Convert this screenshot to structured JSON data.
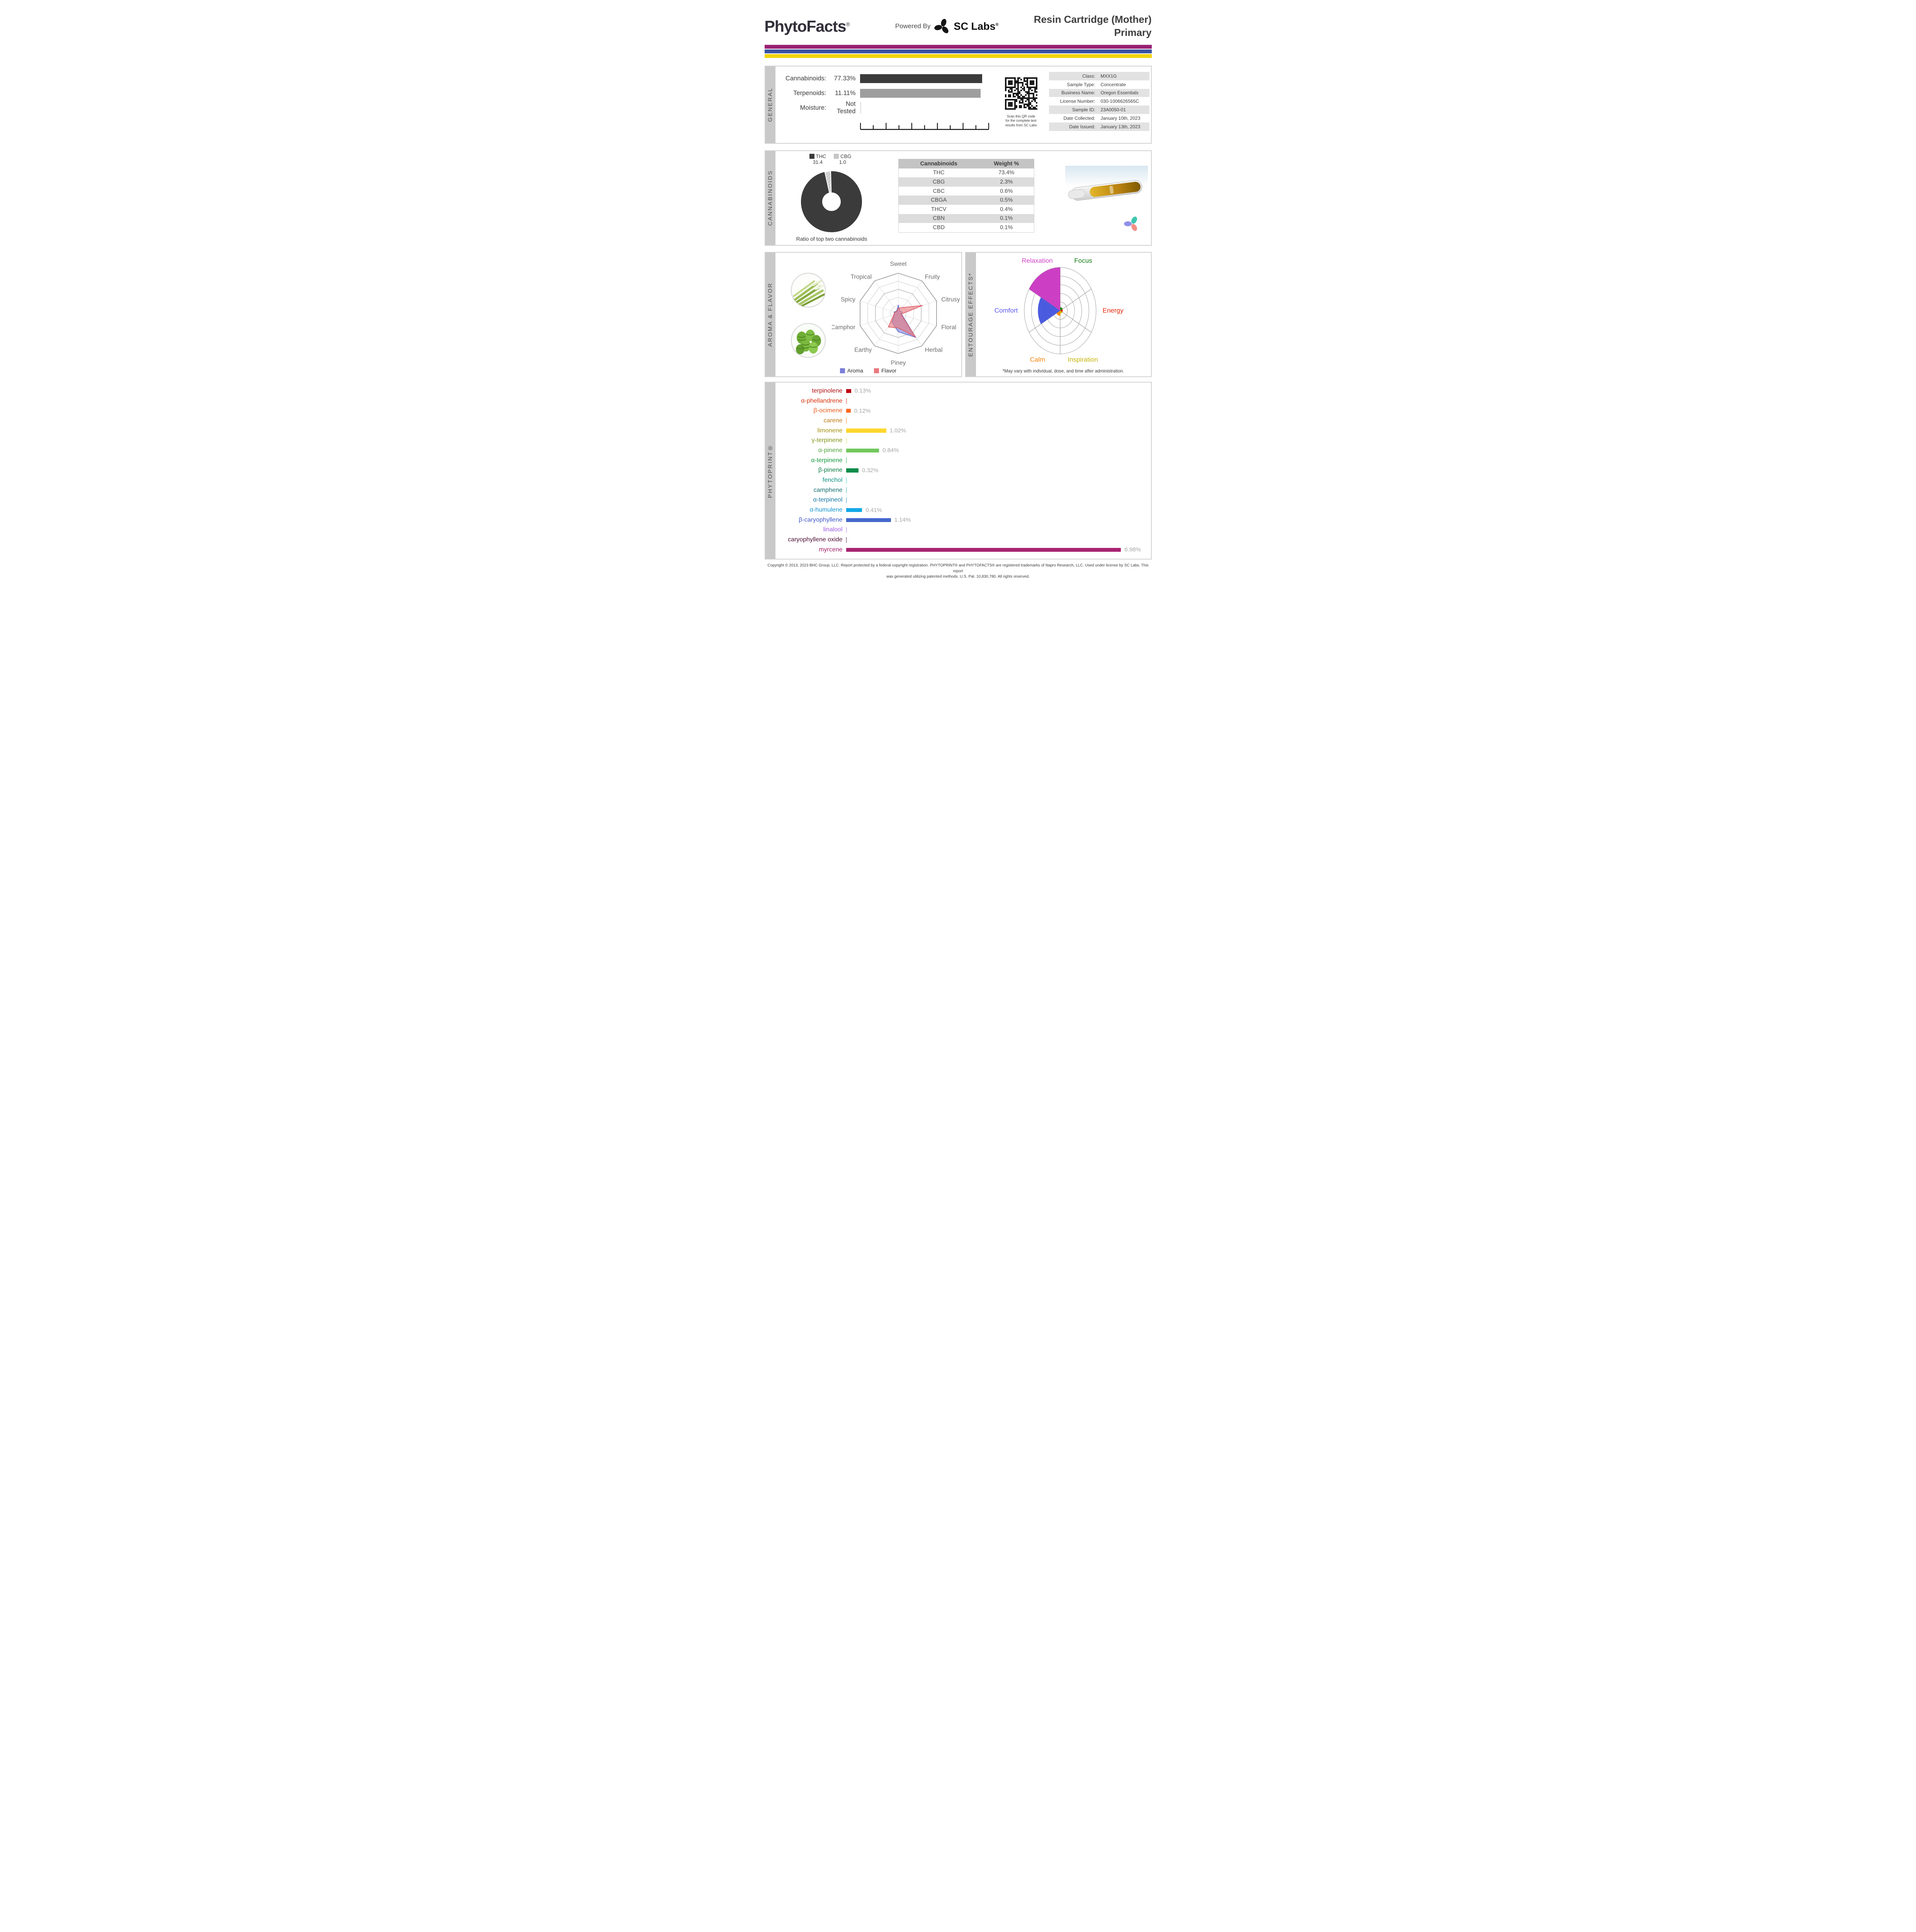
{
  "header": {
    "logo": "PhytoFacts",
    "logo_reg": "®",
    "powered_by": "Powered By",
    "lab": "SC Labs",
    "lab_reg": "®",
    "title_line1": "Resin Cartridge (Mother)",
    "title_line2": "Primary"
  },
  "brand_colors": {
    "stripe_purple": "#9A2173",
    "stripe_blue": "#3A53A4",
    "stripe_yellow": "#F2D50E"
  },
  "sections": {
    "general": "GENERAL",
    "cannabinoids": "CANNABINOIDS",
    "aroma": "AROMA & FLAVOR",
    "entourage": "ENTOURAGE EFFECTS*",
    "phytoprint": "PHYTOPRINT®"
  },
  "general": {
    "rows": [
      {
        "label": "Cannabinoids:",
        "value": "77.33%",
        "bar_pct": 100,
        "bar_color": "#3B3B3B"
      },
      {
        "label": "Terpenoids:",
        "value": "11.11%",
        "bar_pct": 99,
        "bar_color": "#9E9E9E"
      },
      {
        "label": "Moisture:",
        "value": "Not Tested",
        "bar_pct": 0,
        "bar_color": "#E4E4E4"
      }
    ],
    "qr_caption": [
      "Scan this QR code",
      "for the complete test",
      "results from SC Labs"
    ]
  },
  "sample_info": {
    "rows": [
      {
        "label": "Class:",
        "value": "MXX1G"
      },
      {
        "label": "Sample Type:",
        "value": "Concentrate"
      },
      {
        "label": "Business Name:",
        "value": "Oregon Essentials"
      },
      {
        "label": "License Number:",
        "value": "030-1006626565C"
      },
      {
        "label": "Sample ID:",
        "value": "23A0050-01"
      },
      {
        "label": "Date Collected:",
        "value": "January 10th, 2023"
      },
      {
        "label": "Date Issued:",
        "value": "January 13th, 2023"
      }
    ]
  },
  "cannabinoids": {
    "donut_caption": "Ratio of top two cannabinoids",
    "legend": [
      {
        "label": "THC",
        "value": "31.4",
        "color": "#3B3B3B"
      },
      {
        "label": "CBG",
        "value": "1.0",
        "color": "#C6C6C6"
      }
    ]
  },
  "aroma_flavor": {
    "legend": [
      {
        "label": "Aroma",
        "color": "#7B7FD9"
      },
      {
        "label": "Flavor",
        "color": "#E8797F"
      }
    ]
  },
  "entourage": {
    "disclaimer": "*May vary with individual, dose, and time after administration."
  },
  "photos": {
    "lemongrass_alt": "lemongrass-photo",
    "hops_alt": "hops-photo",
    "cartridge_alt": "vape-cartridge-photo",
    "sclabs_mark": "sclabs-pinwheel-icon"
  },
  "footer": {
    "line1": "Copyright © 2013, 2023 BHC Group, LLC. Report protected by a federal copyright registration. PHYTOPRINT® and PHYTOFACTS® are registered trademarks of Napro Research, LLC. Used under license by SC Labs. This report",
    "line2": "was generated utilizing patented methods. U.S. Pat. 10,830,780. All rights reserved."
  },
  "chart_data": [
    {
      "id": "general-bars",
      "type": "bar",
      "orientation": "horizontal",
      "categories": [
        "Cannabinoids",
        "Terpenoids",
        "Moisture"
      ],
      "values": [
        77.33,
        11.11,
        null
      ],
      "value_labels": [
        "77.33%",
        "11.11%",
        "Not Tested"
      ],
      "colors": [
        "#3B3B3B",
        "#9E9E9E",
        "#E4E4E4"
      ]
    },
    {
      "id": "cannabinoid-ratio-donut",
      "type": "pie",
      "title": "Ratio of top two cannabinoids",
      "slices": [
        {
          "label": "THC",
          "value": 31.4,
          "color": "#3B3B3B"
        },
        {
          "label": "CBG",
          "value": 1.0,
          "color": "#C9C9C9",
          "hatched": true
        }
      ]
    },
    {
      "id": "cannabinoid-table",
      "type": "table",
      "columns": [
        "Cannabinoids",
        "Weight %"
      ],
      "rows": [
        [
          "THC",
          "73.4%"
        ],
        [
          "CBG",
          "2.3%"
        ],
        [
          "CBC",
          "0.6%"
        ],
        [
          "CBGA",
          "0.5%"
        ],
        [
          "THCV",
          "0.4%"
        ],
        [
          "CBN",
          "0.1%"
        ],
        [
          "CBD",
          "0.1%"
        ]
      ]
    },
    {
      "id": "aroma-flavor-radar",
      "type": "radar",
      "rings": 5,
      "scale_max": 5,
      "axes": [
        "Sweet",
        "Fruity",
        "Citrusy",
        "Floral",
        "Herbal",
        "Piney",
        "Earthy",
        "Camphor",
        "Spicy",
        "Tropical"
      ],
      "series": [
        {
          "name": "Aroma",
          "color": "#7B7FD9",
          "stroke": "#6469D2",
          "values": [
            1.0,
            0.35,
            0.5,
            0.45,
            3.7,
            2.3,
            1.35,
            0.5,
            0.55,
            0.35
          ]
        },
        {
          "name": "Flavor",
          "color": "#E8797F",
          "stroke": "#DD5A62",
          "values": [
            0.65,
            0.9,
            3.2,
            0.35,
            3.6,
            1.8,
            2.1,
            0.6,
            0.45,
            0.3
          ]
        }
      ]
    },
    {
      "id": "entourage-polar",
      "type": "pie",
      "subtype": "polar-wedges",
      "rings": 5,
      "scale_max": 5,
      "sectors": [
        {
          "label": "Focus",
          "value": 0.4,
          "color": "#168A16",
          "label_color": "#0E7A0E"
        },
        {
          "label": "Energy",
          "value": 0.35,
          "color": "#DD2B0C",
          "label_color": "#E8270B"
        },
        {
          "label": "Inspiration",
          "value": 0.35,
          "color": "#D2C410",
          "label_color": "#C5B40A"
        },
        {
          "label": "Calm",
          "value": 0.6,
          "color": "#FF8A00",
          "label_color": "#F5840C"
        },
        {
          "label": "Comfort",
          "value": 3.1,
          "color": "#4B5BE0",
          "label_color": "#5A5AEE"
        },
        {
          "label": "Relaxation",
          "value": 5.0,
          "color": "#CC3FC4",
          "label_color": "#D246C8"
        }
      ]
    },
    {
      "id": "phytoprint-bars",
      "type": "bar",
      "orientation": "horizontal",
      "unit": "%",
      "xlim": [
        0,
        7.1
      ],
      "items": [
        {
          "label": "terpinolene",
          "label_color": "#B01111",
          "bar_color": "#BE0712",
          "value": 0.13,
          "display": "0.13%"
        },
        {
          "label": "α-phellandrene",
          "label_color": "#D8330E",
          "bar_color": "#E04612",
          "value": null,
          "display": ""
        },
        {
          "label": "β-ocimene",
          "label_color": "#E85C1A",
          "bar_color": "#F96A20",
          "value": 0.12,
          "display": "0.12%"
        },
        {
          "label": "carene",
          "label_color": "#BF7A12",
          "bar_color": "#F58220",
          "value": null,
          "display": ""
        },
        {
          "label": "limonene",
          "label_color": "#A39110",
          "bar_color": "#FFD62E",
          "value": 1.02,
          "display": "1.02%"
        },
        {
          "label": "γ-terpinene",
          "label_color": "#84951C",
          "bar_color": "#D8E04A",
          "value": null,
          "display": ""
        },
        {
          "label": "α-pinene",
          "label_color": "#53A53F",
          "bar_color": "#72C85C",
          "value": 0.84,
          "display": "0.84%"
        },
        {
          "label": "α-terpinene",
          "label_color": "#169A40",
          "bar_color": "#2EB050",
          "value": null,
          "display": ""
        },
        {
          "label": "β-pinene",
          "label_color": "#0C7F45",
          "bar_color": "#0E8C4A",
          "value": 0.32,
          "display": "0.32%"
        },
        {
          "label": "fenchol",
          "label_color": "#0F9388",
          "bar_color": "#35CCC4",
          "value": null,
          "display": ""
        },
        {
          "label": "camphene",
          "label_color": "#156F70",
          "bar_color": "#2FA9A9",
          "value": null,
          "display": ""
        },
        {
          "label": "α-terpineol",
          "label_color": "#1878A4",
          "bar_color": "#2B9BD0",
          "value": null,
          "display": ""
        },
        {
          "label": "α-humulene",
          "label_color": "#0F95CE",
          "bar_color": "#14A9E8",
          "value": 0.41,
          "display": "0.41%"
        },
        {
          "label": "β-caryophyllene",
          "label_color": "#3E57C8",
          "bar_color": "#4568CE",
          "value": 1.14,
          "display": "1.14%"
        },
        {
          "label": "linalool",
          "label_color": "#A05CE6",
          "bar_color": "#B07CF0",
          "value": null,
          "display": ""
        },
        {
          "label": "caryophyllene oxide",
          "label_color": "#4E1034",
          "bar_color": "#5C1A3E",
          "value": null,
          "display": ""
        },
        {
          "label": "myrcene",
          "label_color": "#A51E67",
          "bar_color": "#A82372",
          "value": 6.98,
          "display": "6.98%"
        }
      ]
    }
  ]
}
